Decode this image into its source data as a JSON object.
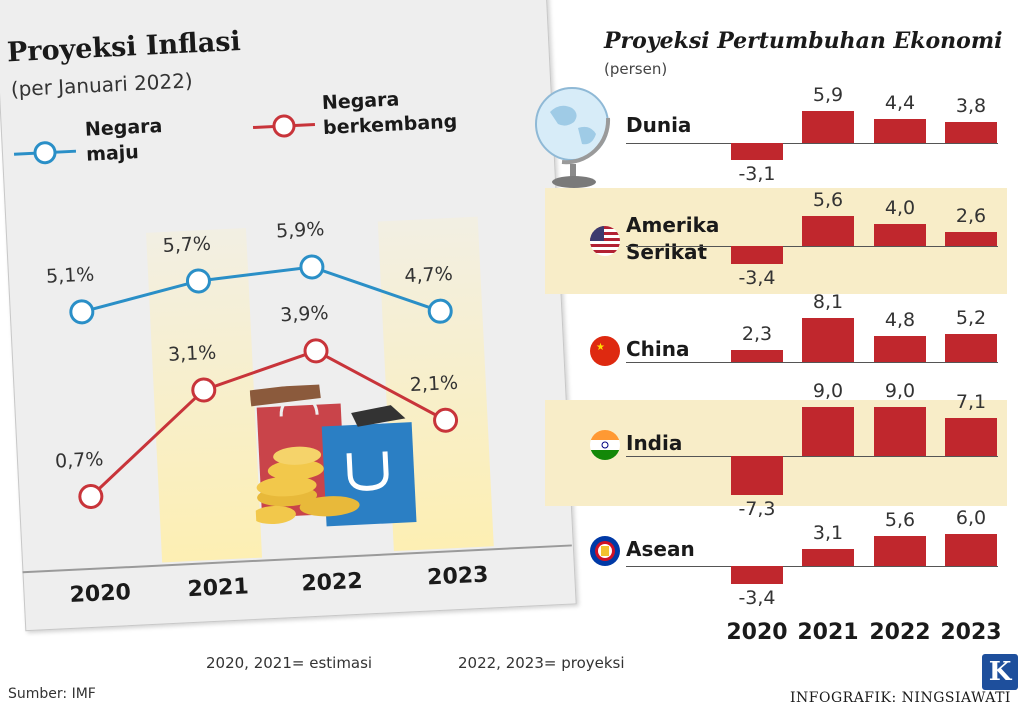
{
  "inflation": {
    "title": "Proyeksi Inflasi",
    "subtitle": "(per Januari 2022)",
    "legend": {
      "developed": "Negara maju",
      "developed_line1": "Negara",
      "developed_line2": "maju",
      "developing": "Negara berkembang",
      "developing_line1": "Negara",
      "developing_line2": "berkembang"
    },
    "colors": {
      "developed": "#2a8fc7",
      "developing": "#c8343a"
    }
  },
  "growth": {
    "title": "Proyeksi Pertumbuhan Ekonomi",
    "unit": "(persen)",
    "bar_color": "#c0272d",
    "rows": [
      {
        "name_line1": "Dunia",
        "name_line2": "",
        "flag": "globe-icon"
      },
      {
        "name_line1": "Amerika",
        "name_line2": "Serikat",
        "flag": "us-flag-icon"
      },
      {
        "name_line1": "China",
        "name_line2": "",
        "flag": "china-flag-icon"
      },
      {
        "name_line1": "India",
        "name_line2": "",
        "flag": "india-flag-icon"
      },
      {
        "name_line1": "Asean",
        "name_line2": "",
        "flag": "asean-flag-icon"
      }
    ]
  },
  "chart_data": [
    {
      "type": "line",
      "title": "Proyeksi Inflasi",
      "subtitle": "(per Januari 2022)",
      "categories": [
        "2020",
        "2021",
        "2022",
        "2023"
      ],
      "series": [
        {
          "name": "Negara maju",
          "values": [
            5.1,
            5.7,
            5.9,
            4.7
          ],
          "labels": [
            "5,1%",
            "5,7%",
            "5,9%",
            "4,7%"
          ],
          "color": "#2a8fc7"
        },
        {
          "name": "Negara berkembang",
          "values": [
            0.7,
            3.1,
            3.9,
            2.1
          ],
          "labels": [
            "0,7%",
            "3,1%",
            "3,9%",
            "2,1%"
          ],
          "color": "#c8343a"
        }
      ],
      "legend": "top-left"
    },
    {
      "type": "bar",
      "title": "Proyeksi Pertumbuhan Ekonomi",
      "unit": "(persen)",
      "categories": [
        "2020",
        "2021",
        "2022",
        "2023"
      ],
      "series": [
        {
          "name": "Dunia",
          "values": [
            -3.1,
            5.9,
            4.4,
            3.8
          ],
          "labels": [
            "-3,1",
            "5,9",
            "4,4",
            "3,8"
          ]
        },
        {
          "name": "Amerika Serikat",
          "values": [
            -3.4,
            5.6,
            4.0,
            2.6
          ],
          "labels": [
            "-3,4",
            "5,6",
            "4,0",
            "2,6"
          ]
        },
        {
          "name": "China",
          "values": [
            2.3,
            8.1,
            4.8,
            5.2
          ],
          "labels": [
            "2,3",
            "8,1",
            "4,8",
            "5,2"
          ]
        },
        {
          "name": "India",
          "values": [
            -7.3,
            9.0,
            9.0,
            7.1
          ],
          "labels": [
            "-7,3",
            "9,0",
            "9,0",
            "7,1"
          ]
        },
        {
          "name": "Asean",
          "values": [
            -3.4,
            3.1,
            5.6,
            6.0
          ],
          "labels": [
            "-3,4",
            "3,1",
            "5,6",
            "6,0"
          ]
        }
      ],
      "color": "#c0272d"
    }
  ],
  "notes": {
    "estimation": "2020, 2021= estimasi",
    "projection": "2022, 2023= proyeksi"
  },
  "source": "Sumber: IMF",
  "credit": "INFOGRAFIK: NINGSIAWATI",
  "logo_letter": "K"
}
